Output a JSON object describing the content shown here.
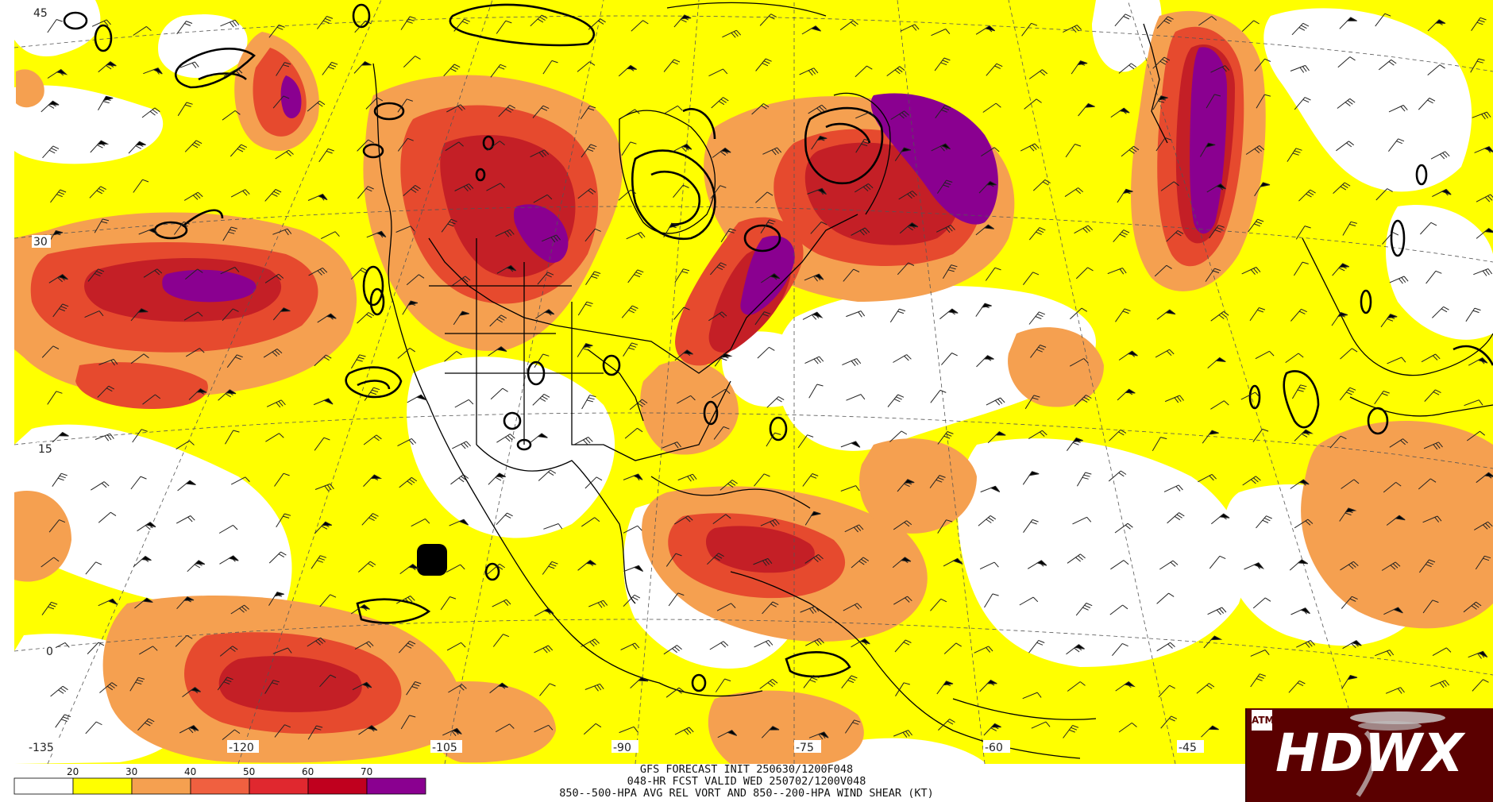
{
  "map": {
    "lat_labels": [
      "45",
      "30",
      "15",
      "0"
    ],
    "lon_labels": [
      "-135",
      "-120",
      "-105",
      "-90",
      "-75",
      "-60",
      "-45"
    ],
    "shading_colors": [
      "#ffffff",
      "#ffff00",
      "#f5a050",
      "#e64a2e",
      "#d11a1f",
      "#b00020",
      "#8a0090"
    ]
  },
  "legend": {
    "ticks": [
      "20",
      "30",
      "40",
      "50",
      "60",
      "70"
    ],
    "colors": [
      "#ffffff",
      "#ffff00",
      "#f5a050",
      "#f06040",
      "#e0282f",
      "#c0001e",
      "#8a0090"
    ]
  },
  "caption": {
    "line1": "GFS FORECAST INIT 250630/1200F048",
    "line2": "048-HR FCST VALID WED 250702/1200V048",
    "line3": "850--500-HPA AVG REL VORT AND 850--200-HPA WIND SHEAR (KT)"
  },
  "logo": {
    "text": "HDWX",
    "badge": "ATM"
  }
}
